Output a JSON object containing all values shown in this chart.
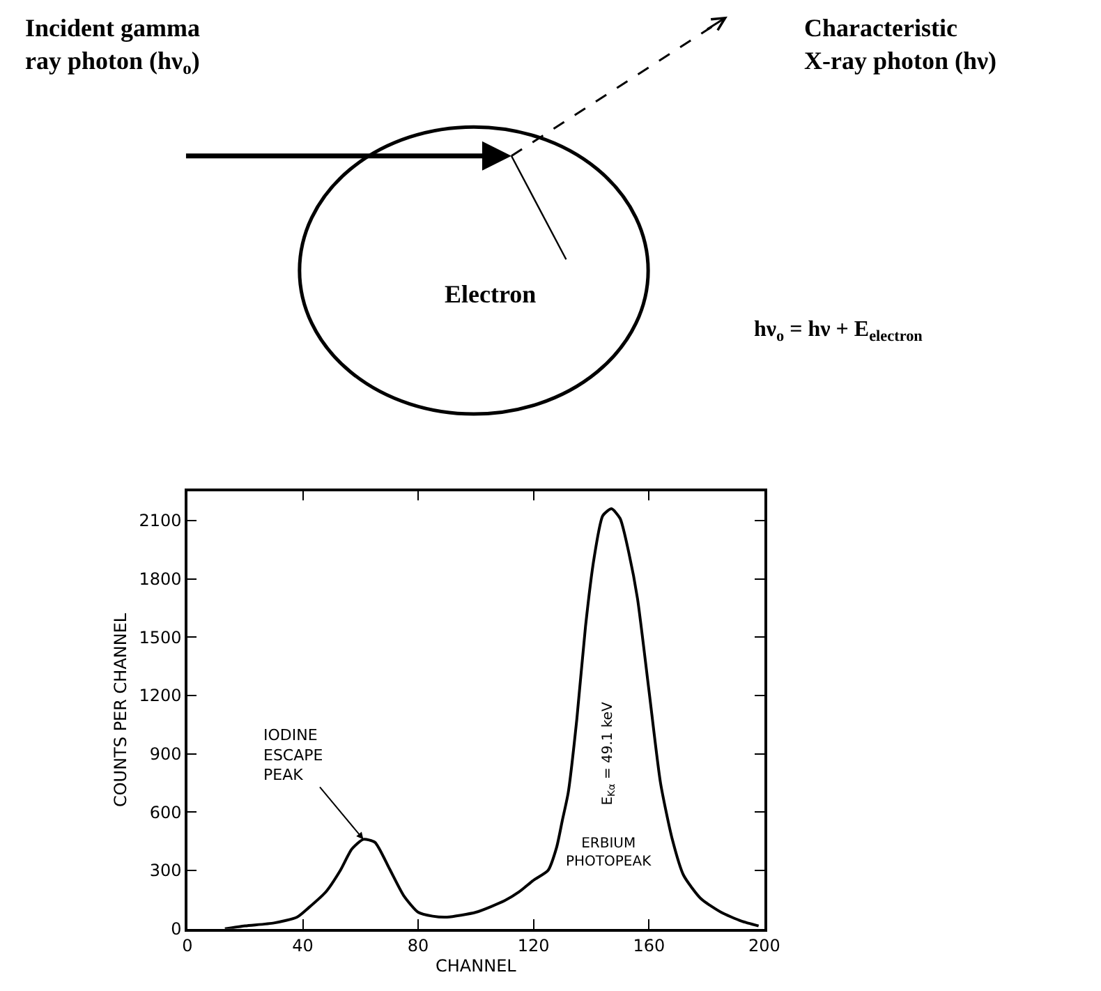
{
  "chart_data": [
    {
      "type": "other",
      "annotations": [
        "Incident gamma\nray photon (hν$_{o}$)",
        "Characteristic\nX-ray photon (hν)",
        "Electron",
        "hν$_{o}$ = hν + E$_{electron}$"
      ]
    },
    {
      "type": "line",
      "xlabel": "CHANNEL",
      "ylabel": "COUNTS PER CHANNEL",
      "x": [
        13,
        20,
        30,
        38,
        42,
        48,
        53,
        57,
        61,
        65,
        70,
        75,
        80,
        85,
        90,
        100,
        110,
        115,
        120,
        125,
        128,
        130,
        132,
        135,
        138,
        141,
        144,
        147,
        150,
        153,
        156,
        160,
        164,
        168,
        172,
        178,
        185,
        192,
        198
      ],
      "values": [
        0,
        15,
        30,
        60,
        108,
        190,
        300,
        410,
        460,
        445,
        310,
        170,
        85,
        65,
        60,
        85,
        145,
        190,
        250,
        300,
        420,
        560,
        700,
        1080,
        1555,
        1910,
        2125,
        2160,
        2110,
        1935,
        1700,
        1225,
        750,
        465,
        275,
        155,
        85,
        40,
        15
      ],
      "color": "#000000",
      "line_style": "solid",
      "marker": "none",
      "xlim": [
        0,
        200
      ],
      "xticks": [
        0,
        40,
        80,
        120,
        160,
        200
      ],
      "ylim": [
        0,
        2250
      ],
      "yticks": [
        0,
        300,
        600,
        900,
        1200,
        1500,
        1800,
        2100
      ],
      "annotations": [
        {
          "text": "IODINE\nESCAPE\nPEAK",
          "x": 61,
          "y": 460
        },
        "E$_{Kα}$ = 49.1 keV",
        "ERBIUM\nPHOTOPEAK"
      ]
    }
  ]
}
